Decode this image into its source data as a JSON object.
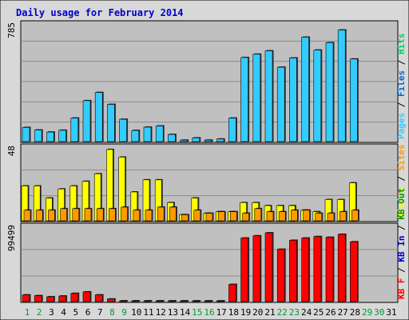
{
  "chart_data": {
    "type": "bar",
    "title": "Daily usage for February 2014",
    "categories": [
      "1",
      "2",
      "3",
      "4",
      "5",
      "6",
      "7",
      "8",
      "9",
      "10",
      "11",
      "12",
      "13",
      "14",
      "15",
      "16",
      "17",
      "18",
      "19",
      "20",
      "21",
      "22",
      "23",
      "24",
      "25",
      "26",
      "27",
      "28",
      "29",
      "30",
      "31"
    ],
    "weekend_days": [
      "1",
      "2",
      "8",
      "9",
      "15",
      "16",
      "22",
      "23",
      "29",
      "30"
    ],
    "colors": {
      "title": "#0000cc",
      "pages": "#33ccff",
      "files": "#0066cc",
      "hits": "#00cc66",
      "visits": "#ffff00",
      "sites": "#ff9900",
      "kb_f": "#ff0000",
      "kb_in": "#0000cc",
      "kb_out": "#009900",
      "weekend_label": "#009933",
      "weekday_label": "#000000",
      "plot_bg": "#c0c0c0",
      "frame_bg": "#d8d8d8"
    },
    "panels": [
      {
        "id": "hits",
        "max_label": "785",
        "ymax": 785,
        "side_label": [
          {
            "text": "Pages",
            "color": "#33ccff"
          },
          {
            "text": " / ",
            "color": "#000000"
          },
          {
            "text": "Files",
            "color": "#0066cc"
          },
          {
            "text": " / ",
            "color": "#000000"
          },
          {
            "text": "Hits",
            "color": "#00cc66"
          }
        ],
        "series": [
          {
            "name": "Pages",
            "color": "#33ccff",
            "values": [
              95,
              78,
              64,
              76,
              158,
              275,
              330,
              250,
              150,
              75,
              97,
              105,
              48,
              10,
              25,
              10,
              17,
              158,
              565,
              587,
              610,
              500,
              562,
              702,
              615,
              665,
              750,
              555,
              0,
              0,
              0
            ]
          }
        ]
      },
      {
        "id": "visits",
        "max_label": "48",
        "ymax": 48,
        "side_label": [
          {
            "text": "Visits",
            "color": "#ffff00"
          },
          {
            "text": " / ",
            "color": "#000000"
          },
          {
            "text": "Sites",
            "color": "#ff9900"
          }
        ],
        "series": [
          {
            "name": "Visits",
            "color": "#ffff00",
            "values": [
              23,
              23,
              15,
              21,
              23,
              26,
              31,
              47,
              42,
              19,
              27,
              27,
              12,
              4,
              15,
              5,
              6,
              6,
              12,
              12,
              10,
              10,
              10,
              7,
              6,
              14,
              14,
              25,
              0,
              0,
              0
            ]
          },
          {
            "name": "Sites",
            "color": "#ff9900",
            "values": [
              7,
              7,
              7,
              8,
              8,
              8,
              8,
              8,
              9,
              7,
              7,
              9,
              9,
              4,
              7,
              5,
              6,
              6,
              5,
              8,
              6,
              6,
              7,
              7,
              5,
              5,
              6,
              7,
              0,
              0,
              0
            ]
          }
        ]
      },
      {
        "id": "kbytes",
        "max_label": "99499",
        "ymax": 99499,
        "side_label": [
          {
            "text": "KB F",
            "color": "#ff0000"
          },
          {
            "text": " / ",
            "color": "#000000"
          },
          {
            "text": "KB In",
            "color": "#0000cc"
          },
          {
            "text": " / ",
            "color": "#000000"
          },
          {
            "text": "KB Out",
            "color": "#009900"
          }
        ],
        "series": [
          {
            "name": "KB F",
            "color": "#ff0000",
            "values": [
              9000,
              8000,
              6500,
              7500,
              11000,
              13000,
              9000,
              3500,
              700,
              700,
              700,
              700,
              700,
              700,
              700,
              700,
              700,
              23000,
              85000,
              88000,
              92000,
              70000,
              82000,
              85000,
              87000,
              86000,
              90000,
              80000,
              0,
              0,
              0
            ]
          }
        ]
      }
    ]
  }
}
